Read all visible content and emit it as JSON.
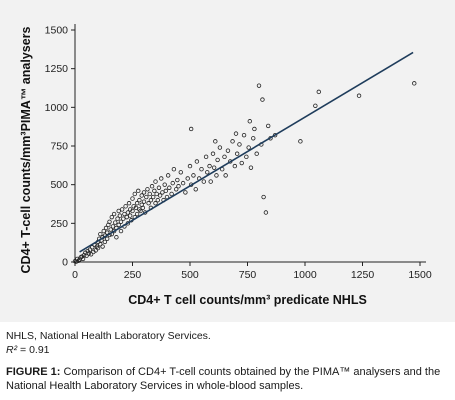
{
  "chart_data": {
    "type": "scatter",
    "title": "",
    "xlabel": "CD4+ T cell counts/mm³ predicate NHLS",
    "ylabel": "CD4+ T-cell counts/mm³PIMA™ analysers",
    "xlim": [
      0,
      1500
    ],
    "ylim": [
      0,
      1500
    ],
    "x_ticks": [
      "0",
      "250",
      "500",
      "750",
      "1000",
      "1250",
      "1500"
    ],
    "y_ticks": [
      "0",
      "250",
      "500",
      "750",
      "1000",
      "1250",
      "1500"
    ],
    "grid": false,
    "legend": "none",
    "regression_line": {
      "x": [
        20,
        1470
      ],
      "y": [
        65,
        1355
      ]
    },
    "points": [
      [
        0,
        5
      ],
      [
        5,
        2
      ],
      [
        10,
        20
      ],
      [
        15,
        8
      ],
      [
        20,
        15
      ],
      [
        25,
        30
      ],
      [
        30,
        35
      ],
      [
        35,
        20
      ],
      [
        40,
        45
      ],
      [
        45,
        60
      ],
      [
        50,
        40
      ],
      [
        55,
        70
      ],
      [
        60,
        55
      ],
      [
        65,
        80
      ],
      [
        70,
        50
      ],
      [
        75,
        95
      ],
      [
        80,
        65
      ],
      [
        85,
        110
      ],
      [
        90,
        75
      ],
      [
        95,
        100
      ],
      [
        100,
        130
      ],
      [
        100,
        90
      ],
      [
        105,
        150
      ],
      [
        110,
        115
      ],
      [
        110,
        180
      ],
      [
        115,
        140
      ],
      [
        120,
        160
      ],
      [
        120,
        100
      ],
      [
        125,
        200
      ],
      [
        130,
        170
      ],
      [
        130,
        130
      ],
      [
        135,
        220
      ],
      [
        140,
        190
      ],
      [
        140,
        150
      ],
      [
        145,
        240
      ],
      [
        150,
        175
      ],
      [
        150,
        260
      ],
      [
        155,
        210
      ],
      [
        160,
        180
      ],
      [
        160,
        290
      ],
      [
        165,
        230
      ],
      [
        170,
        200
      ],
      [
        170,
        310
      ],
      [
        175,
        255
      ],
      [
        180,
        220
      ],
      [
        180,
        160
      ],
      [
        185,
        280
      ],
      [
        190,
        240
      ],
      [
        190,
        330
      ],
      [
        195,
        300
      ],
      [
        200,
        260
      ],
      [
        200,
        200
      ],
      [
        205,
        340
      ],
      [
        210,
        280
      ],
      [
        215,
        310
      ],
      [
        215,
        230
      ],
      [
        220,
        360
      ],
      [
        225,
        290
      ],
      [
        230,
        320
      ],
      [
        230,
        250
      ],
      [
        235,
        380
      ],
      [
        240,
        300
      ],
      [
        240,
        340
      ],
      [
        245,
        270
      ],
      [
        250,
        410
      ],
      [
        250,
        330
      ],
      [
        255,
        360
      ],
      [
        260,
        290
      ],
      [
        260,
        440
      ],
      [
        265,
        350
      ],
      [
        270,
        380
      ],
      [
        270,
        310
      ],
      [
        275,
        460
      ],
      [
        280,
        340
      ],
      [
        280,
        400
      ],
      [
        285,
        330
      ],
      [
        290,
        430
      ],
      [
        290,
        370
      ],
      [
        295,
        350
      ],
      [
        300,
        450
      ],
      [
        300,
        390
      ],
      [
        305,
        320
      ],
      [
        310,
        420
      ],
      [
        315,
        470
      ],
      [
        320,
        380
      ],
      [
        325,
        440
      ],
      [
        330,
        400
      ],
      [
        330,
        350
      ],
      [
        335,
        490
      ],
      [
        340,
        420
      ],
      [
        345,
        460
      ],
      [
        350,
        380
      ],
      [
        350,
        520
      ],
      [
        355,
        440
      ],
      [
        360,
        400
      ],
      [
        365,
        480
      ],
      [
        370,
        430
      ],
      [
        375,
        540
      ],
      [
        380,
        450
      ],
      [
        385,
        400
      ],
      [
        390,
        500
      ],
      [
        395,
        460
      ],
      [
        400,
        420
      ],
      [
        405,
        560
      ],
      [
        410,
        480
      ],
      [
        420,
        440
      ],
      [
        425,
        510
      ],
      [
        430,
        600
      ],
      [
        440,
        470
      ],
      [
        445,
        530
      ],
      [
        450,
        490
      ],
      [
        460,
        580
      ],
      [
        470,
        510
      ],
      [
        480,
        450
      ],
      [
        490,
        540
      ],
      [
        500,
        620
      ],
      [
        505,
        500
      ],
      [
        515,
        560
      ],
      [
        525,
        470
      ],
      [
        530,
        650
      ],
      [
        540,
        540
      ],
      [
        550,
        600
      ],
      [
        560,
        520
      ],
      [
        570,
        680
      ],
      [
        575,
        580
      ],
      [
        585,
        620
      ],
      [
        590,
        520
      ],
      [
        600,
        700
      ],
      [
        605,
        610
      ],
      [
        615,
        560
      ],
      [
        620,
        660
      ],
      [
        630,
        740
      ],
      [
        640,
        600
      ],
      [
        650,
        680
      ],
      [
        655,
        560
      ],
      [
        665,
        720
      ],
      [
        675,
        650
      ],
      [
        685,
        780
      ],
      [
        695,
        620
      ],
      [
        705,
        700
      ],
      [
        715,
        760
      ],
      [
        725,
        640
      ],
      [
        735,
        820
      ],
      [
        745,
        680
      ],
      [
        755,
        740
      ],
      [
        765,
        610
      ],
      [
        775,
        800
      ],
      [
        780,
        860
      ],
      [
        790,
        700
      ],
      [
        800,
        1140
      ],
      [
        810,
        760
      ],
      [
        820,
        420
      ],
      [
        830,
        320
      ],
      [
        850,
        800
      ],
      [
        870,
        820
      ],
      [
        980,
        780
      ],
      [
        1045,
        1010
      ],
      [
        1060,
        1100
      ],
      [
        1235,
        1075
      ],
      [
        1475,
        1155
      ],
      [
        505,
        860
      ],
      [
        760,
        910
      ],
      [
        815,
        1050
      ],
      [
        610,
        780
      ],
      [
        700,
        830
      ],
      [
        840,
        880
      ]
    ]
  },
  "caption": {
    "abbrev": "NHLS, National Health Laboratory Services.",
    "r2_symbol": "R²",
    "r2_value": "= 0.91",
    "figure_label": "FIGURE 1:",
    "figure_text": "Comparison of CD4+ T-cell counts obtained by the PIMA™ analysers and the National Health Laboratory Services in whole-blood samples."
  }
}
